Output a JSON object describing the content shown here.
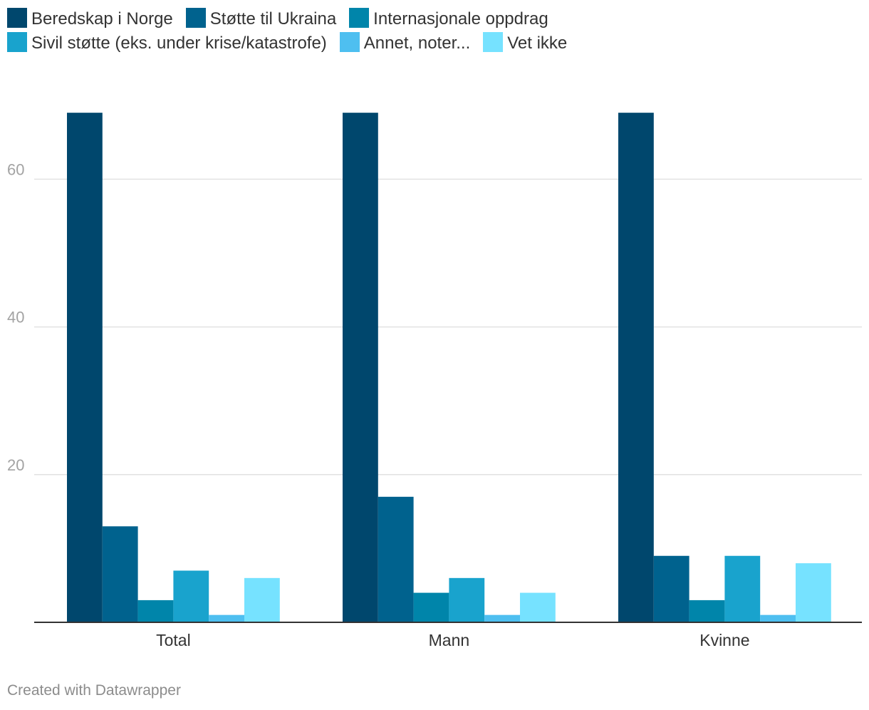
{
  "chart_data": {
    "type": "bar",
    "categories": [
      "Total",
      "Mann",
      "Kvinne"
    ],
    "series": [
      {
        "name": "Beredskap i Norge",
        "color": "#00476d",
        "values": [
          69,
          69,
          69
        ]
      },
      {
        "name": "Støtte til Ukraina",
        "color": "#00628e",
        "values": [
          13,
          17,
          9
        ]
      },
      {
        "name": "Internasjonale oppdrag",
        "color": "#0085aa",
        "values": [
          3,
          4,
          3
        ]
      },
      {
        "name": "Sivil støtte (eks. under krise/katastrofe)",
        "color": "#19a3cd",
        "values": [
          7,
          6,
          9
        ]
      },
      {
        "name": "Annet, noter...",
        "color": "#4ebff0",
        "values": [
          1,
          1,
          1
        ]
      },
      {
        "name": "Vet ikke",
        "color": "#76e2ff",
        "values": [
          6,
          4,
          8
        ]
      }
    ],
    "yticks": [
      20,
      40,
      60
    ],
    "ylim": [
      0,
      69
    ],
    "grid": true,
    "legend": "top"
  },
  "footer": "Created with Datawrapper"
}
